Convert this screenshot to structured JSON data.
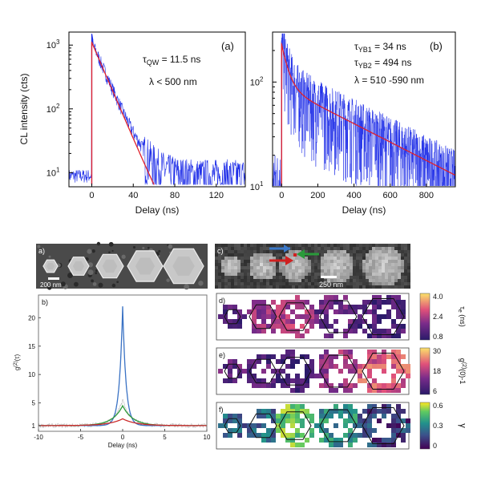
{
  "colors": {
    "trace_blue": "#1f2ee8",
    "fit_red": "#e0202c",
    "g2_blue": "#3a72c4",
    "g2_green": "#2e9a3a",
    "g2_red": "#cc2a2a",
    "g2_grey": "#aaaaaa"
  },
  "chart_data": [
    {
      "type": "line",
      "panel": "(a)",
      "xlabel": "Delay (ns)",
      "ylabel": "CL intensity (cts)",
      "xlim": [
        -22,
        148
      ],
      "ylim_log": [
        6,
        1600
      ],
      "xticks": [
        "0",
        "40",
        "80",
        "120"
      ],
      "xtick_values": [
        0,
        40,
        80,
        120
      ],
      "yticks": [
        "10",
        "10",
        "10"
      ],
      "ytick_exp": [
        "1",
        "2",
        "3"
      ],
      "ytick_values": [
        10,
        100,
        1000
      ],
      "annotations": {
        "tau": "τ",
        "tau_sub": "QW",
        "tau_val": " = 11.5 ns",
        "lambda": "λ < 500 nm"
      },
      "series": [
        {
          "kind": "data",
          "description": "CL decay trace",
          "peak": 1500,
          "tau": 11.5,
          "noise_floor": 8
        },
        {
          "kind": "fit",
          "tau": 11.5,
          "amplitude": 1100,
          "x": [
            0,
            60
          ]
        }
      ]
    },
    {
      "type": "line",
      "panel": "(b)",
      "xlabel": "Delay (ns)",
      "ylabel": "",
      "xlim": [
        -50,
        960
      ],
      "ylim_log": [
        10,
        300
      ],
      "xticks": [
        "0",
        "200",
        "400",
        "600",
        "800"
      ],
      "xtick_values": [
        0,
        200,
        400,
        600,
        800
      ],
      "yticks": [
        "10",
        "10"
      ],
      "ytick_exp": [
        "1",
        "2"
      ],
      "ytick_values": [
        10,
        100
      ],
      "annotations": {
        "tau1": "τ",
        "tau1_sub": "YB1",
        "tau1_val": " = 34 ns",
        "tau2": "τ",
        "tau2_sub": "YB2",
        "tau2_val": " = 494 ns",
        "lambda": "λ = 510 -590 nm"
      },
      "series": [
        {
          "kind": "data",
          "description": "CL decay trace",
          "peak": 250
        },
        {
          "kind": "fit",
          "tau1": 34,
          "tau2": 494,
          "amp1": 140,
          "amp2": 90,
          "x": [
            0,
            960
          ]
        }
      ]
    },
    {
      "type": "image",
      "panel": "a)",
      "description": "SEM image of five hexagonal nanostructures of increasing size",
      "scalebar": "200 nm"
    },
    {
      "type": "line",
      "panel": "b)",
      "xlabel": "Delay (ns)",
      "ylabel": "g(2)(τ)",
      "ylabel_main": "g",
      "ylabel_sup": "(2)",
      "ylabel_tail": "(τ)",
      "xlim": [
        -10,
        10
      ],
      "ylim": [
        0,
        24
      ],
      "xticks": [
        "-10",
        "-5",
        "0",
        "5",
        "10"
      ],
      "xtick_values": [
        -10,
        -5,
        0,
        5,
        10
      ],
      "yticks": [
        "1",
        "5",
        "10",
        "15",
        "20"
      ],
      "ytick_values": [
        1,
        5,
        10,
        15,
        20
      ],
      "series": [
        {
          "color": "blue",
          "peak": 22,
          "tau": 0.4
        },
        {
          "color": "green",
          "peak": 4.5,
          "tau": 1.2
        },
        {
          "color": "red",
          "peak": 2.2,
          "tau": 1.6
        }
      ]
    },
    {
      "type": "image",
      "panel": "c)",
      "description": "CL intensity map of the same nanostructures with colored arrows",
      "scalebar": "250 nm"
    },
    {
      "type": "heatmap",
      "panel": "d)",
      "colorbar_ticks": [
        "0.8",
        "2.4",
        "4.0"
      ],
      "colorbar_label_main": "τ",
      "colorbar_label_sub": "e",
      "colorbar_label_tail": " (ns)"
    },
    {
      "type": "heatmap",
      "panel": "e)",
      "colorbar_ticks": [
        "6",
        "18",
        "30"
      ],
      "colorbar_label_main": "g",
      "colorbar_label_sup": "(2)",
      "colorbar_label_tail": "(0)-1"
    },
    {
      "type": "heatmap",
      "panel": "f)",
      "colorbar_ticks": [
        "0",
        "0.3",
        "0.6"
      ],
      "colorbar_label_main": "γ"
    }
  ]
}
